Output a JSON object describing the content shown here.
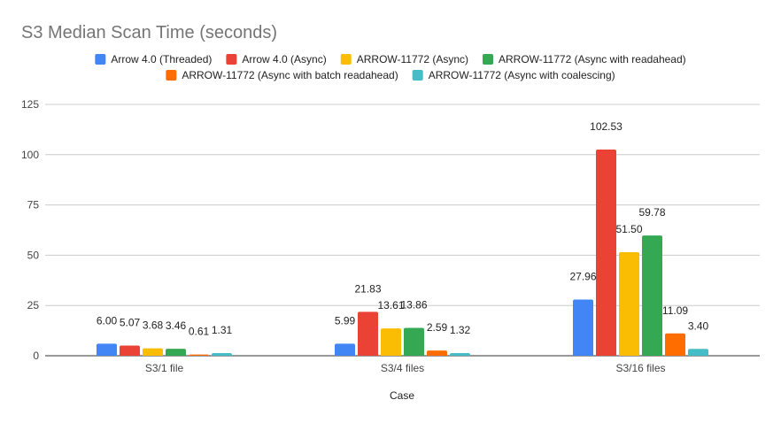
{
  "chart_data": {
    "type": "bar",
    "title": "S3 Median Scan Time (seconds)",
    "xlabel": "Case",
    "ylabel": "",
    "categories": [
      "S3/1 file",
      "S3/4 files",
      "S3/16 files"
    ],
    "ylim": [
      0,
      125
    ],
    "yticks": [
      0,
      25,
      50,
      75,
      100,
      125
    ],
    "grid": true,
    "legend_position": "top",
    "series": [
      {
        "name": "Arrow 4.0 (Threaded)",
        "color": "#4285f4",
        "values": [
          6.0,
          5.99,
          27.96
        ],
        "labels": [
          "6.00",
          "5.99",
          "27.96"
        ]
      },
      {
        "name": "Arrow 4.0 (Async)",
        "color": "#ea4335",
        "values": [
          5.07,
          21.83,
          102.53
        ],
        "labels": [
          "5.07",
          "21.83",
          "102.53"
        ]
      },
      {
        "name": "ARROW-11772 (Async)",
        "color": "#fbbc04",
        "values": [
          3.68,
          13.61,
          51.5
        ],
        "labels": [
          "3.68",
          "13.61",
          "51.50"
        ]
      },
      {
        "name": "ARROW-11772 (Async with readahead)",
        "color": "#34a853",
        "values": [
          3.46,
          13.86,
          59.78
        ],
        "labels": [
          "3.46",
          "13.86",
          "59.78"
        ]
      },
      {
        "name": "ARROW-11772 (Async with batch readahead)",
        "color": "#ff6d01",
        "values": [
          0.61,
          2.59,
          11.09
        ],
        "labels": [
          "0.61",
          "2.59",
          "11.09"
        ]
      },
      {
        "name": "ARROW-11772 (Async with coalescing)",
        "color": "#46bdc6",
        "values": [
          1.31,
          1.32,
          3.4
        ],
        "labels": [
          "1.31",
          "1.32",
          "3.40"
        ]
      }
    ]
  }
}
